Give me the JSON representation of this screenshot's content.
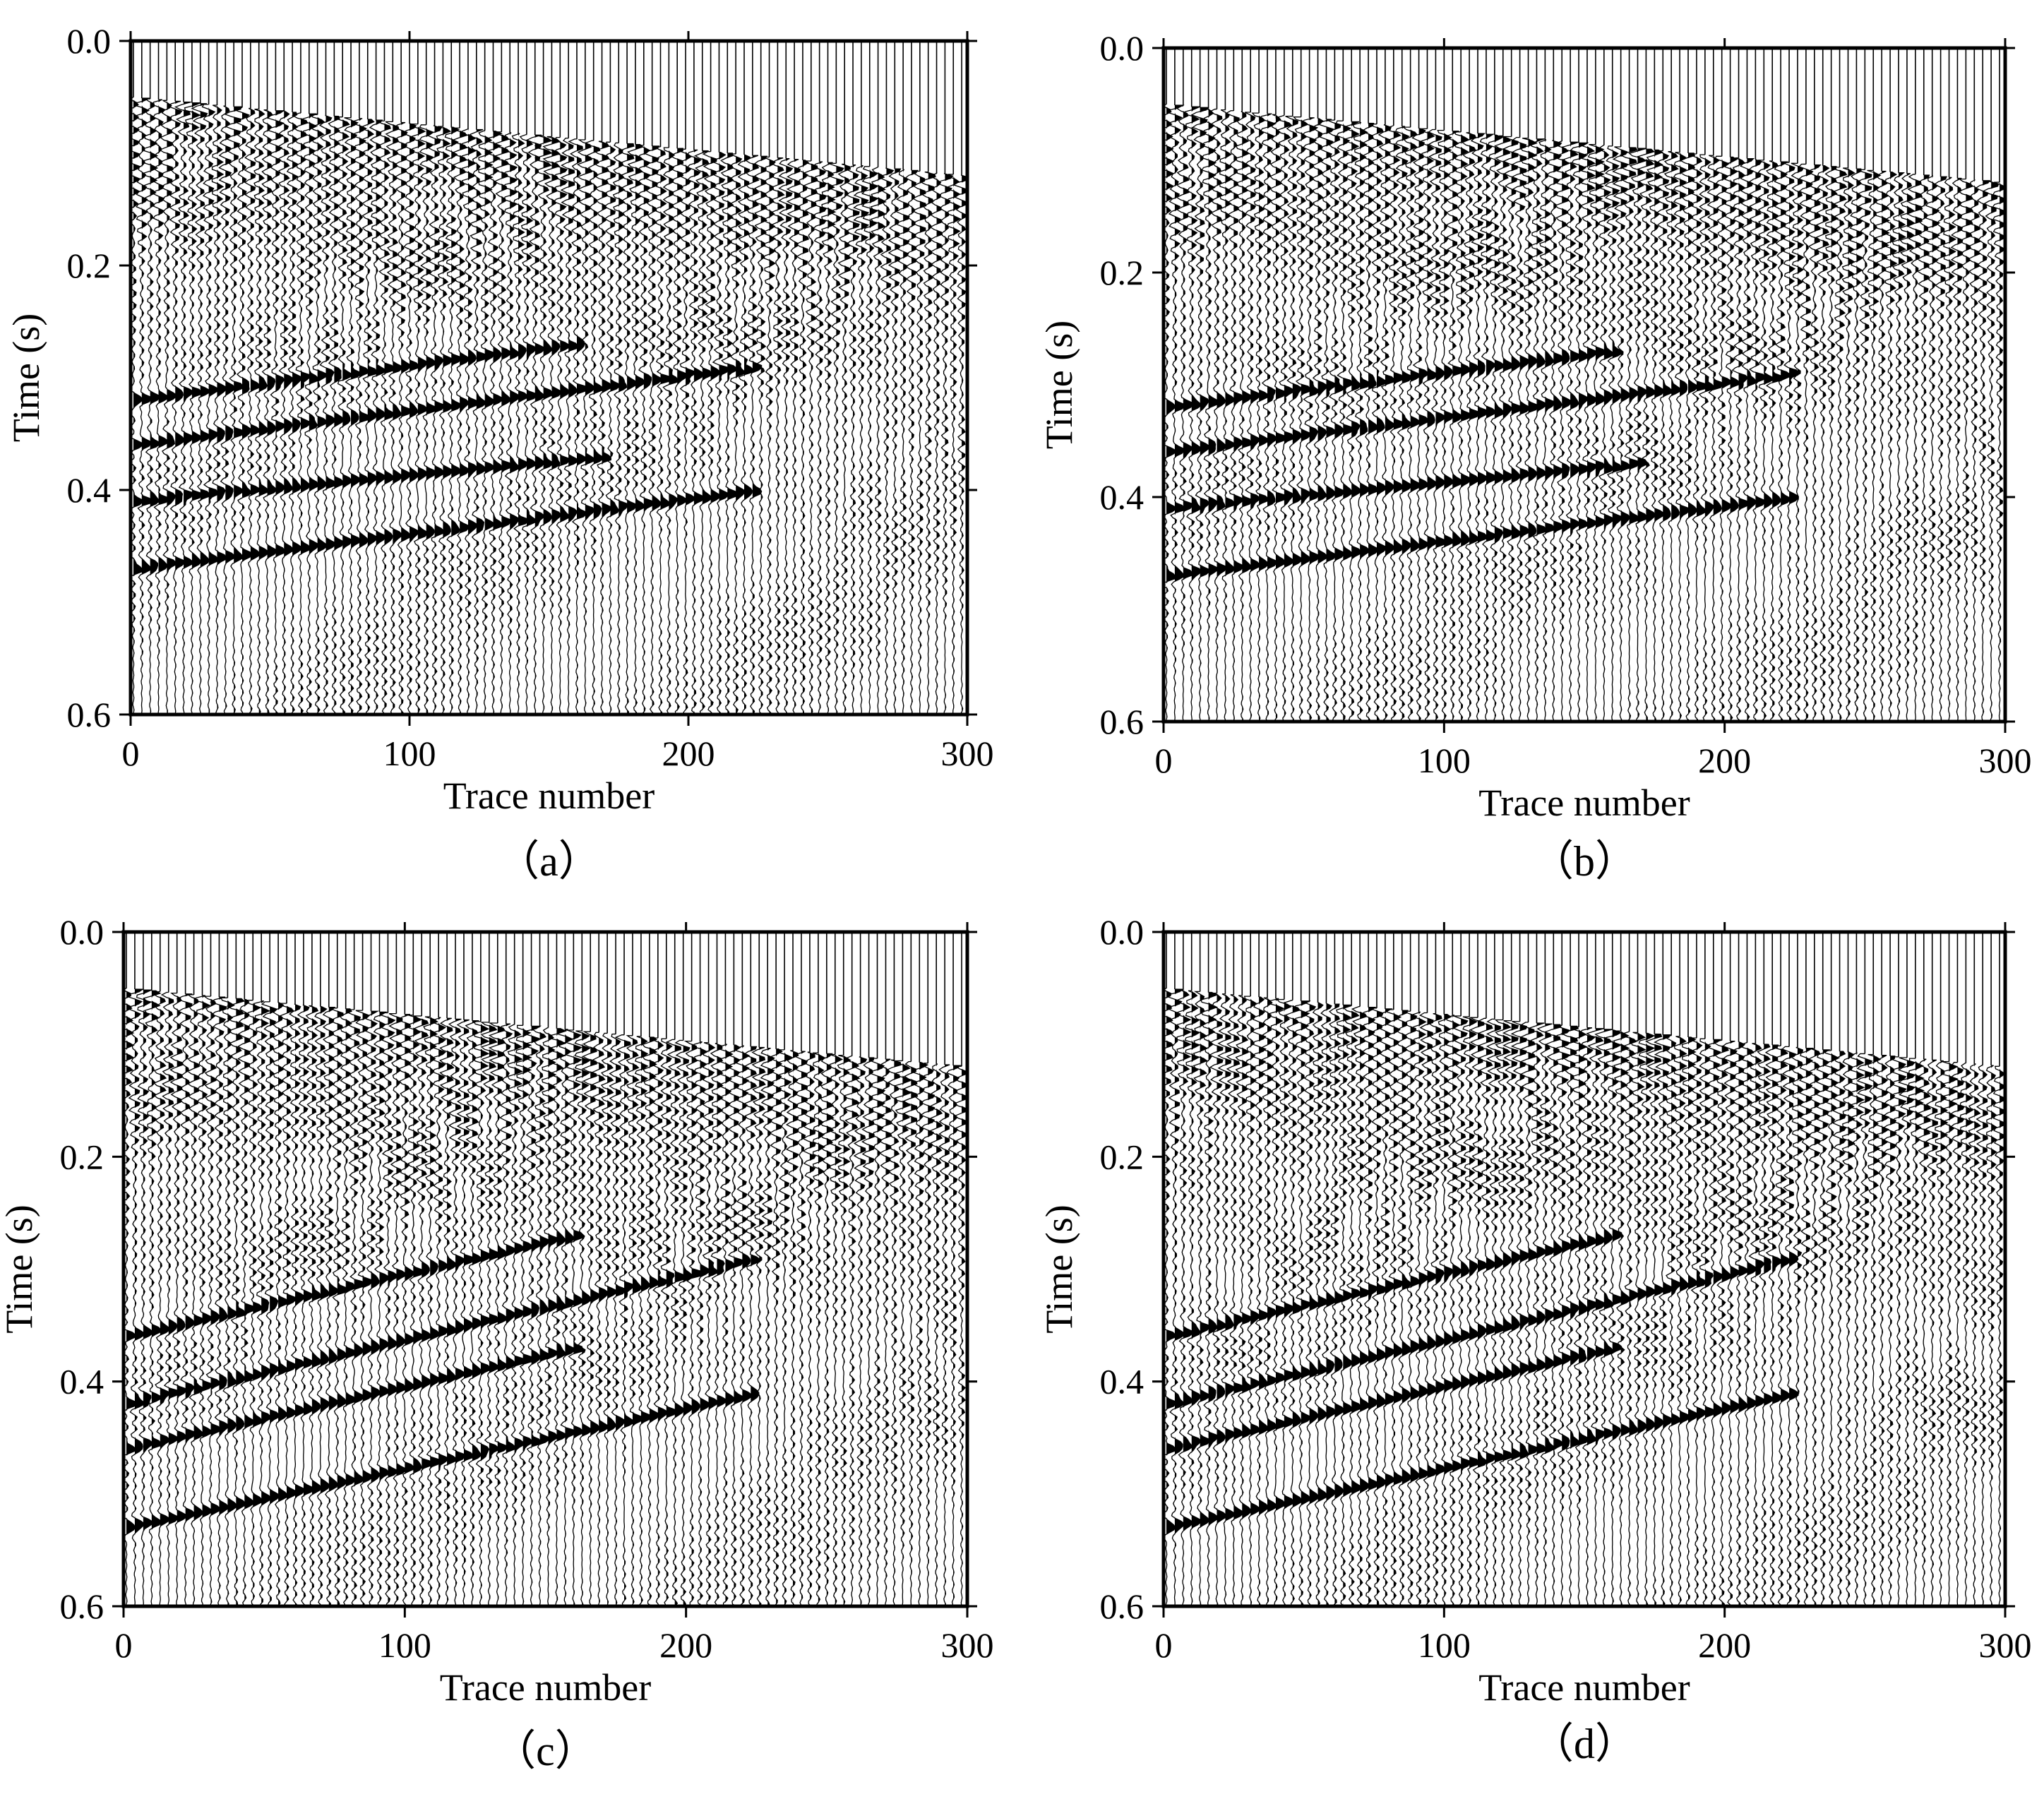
{
  "figure": {
    "description_free": true
  },
  "chart_data": [
    {
      "type": "seismic-wiggle",
      "panel_label": "（a）",
      "xlabel": "Trace number",
      "ylabel": "Time (s)",
      "xlim": [
        0,
        300
      ],
      "ylim": [
        0.6,
        0.0
      ],
      "xticks": [
        0,
        100,
        200,
        300
      ],
      "xtick_labels": [
        "0",
        "100",
        "200",
        "300"
      ],
      "yticks": [
        0.0,
        0.2,
        0.4,
        0.6
      ],
      "ytick_labels": [
        "0.0",
        "0.2",
        "0.4",
        "0.6"
      ],
      "n_traces": 300,
      "first_arrival": {
        "start_trace": 0,
        "start_time": 0.05,
        "end_trace": 300,
        "end_time": 0.12
      },
      "events": [
        {
          "kind": "reflection",
          "from_trace": 0,
          "t0": 0.32,
          "to_trace": 160,
          "t1": 0.27
        },
        {
          "kind": "reflection",
          "from_trace": 0,
          "t0": 0.36,
          "to_trace": 225,
          "t1": 0.29
        },
        {
          "kind": "reflection",
          "from_trace": 0,
          "t0": 0.41,
          "to_trace": 170,
          "t1": 0.37
        },
        {
          "kind": "reflection",
          "from_trace": 0,
          "t0": 0.47,
          "to_trace": 225,
          "t1": 0.4
        }
      ]
    },
    {
      "type": "seismic-wiggle",
      "panel_label": "（b）",
      "xlabel": "Trace number",
      "ylabel": "Time (s)",
      "xlim": [
        0,
        300
      ],
      "ylim": [
        0.6,
        0.0
      ],
      "xticks": [
        0,
        100,
        200,
        300
      ],
      "xtick_labels": [
        "0",
        "100",
        "200",
        "300"
      ],
      "yticks": [
        0.0,
        0.2,
        0.4,
        0.6
      ],
      "ytick_labels": [
        "0.0",
        "0.2",
        "0.4",
        "0.6"
      ],
      "n_traces": 300,
      "first_arrival": {
        "start_trace": 0,
        "start_time": 0.05,
        "end_trace": 300,
        "end_time": 0.12
      },
      "events": [
        {
          "kind": "reflection",
          "from_trace": 0,
          "t0": 0.32,
          "to_trace": 160,
          "t1": 0.27
        },
        {
          "kind": "reflection",
          "from_trace": 0,
          "t0": 0.36,
          "to_trace": 225,
          "t1": 0.29
        },
        {
          "kind": "reflection",
          "from_trace": 0,
          "t0": 0.41,
          "to_trace": 170,
          "t1": 0.37
        },
        {
          "kind": "reflection",
          "from_trace": 0,
          "t0": 0.47,
          "to_trace": 225,
          "t1": 0.4
        }
      ]
    },
    {
      "type": "seismic-wiggle",
      "panel_label": "（c）",
      "xlabel": "Trace number",
      "ylabel": "Time (s)",
      "xlim": [
        0,
        300
      ],
      "ylim": [
        0.6,
        0.0
      ],
      "xticks": [
        0,
        100,
        200,
        300
      ],
      "xtick_labels": [
        "0",
        "100",
        "200",
        "300"
      ],
      "yticks": [
        0.0,
        0.2,
        0.4,
        0.6
      ],
      "ytick_labels": [
        "0.0",
        "0.2",
        "0.4",
        "0.6"
      ],
      "n_traces": 300,
      "first_arrival": {
        "start_trace": 0,
        "start_time": 0.05,
        "end_trace": 300,
        "end_time": 0.12
      },
      "events": [
        {
          "kind": "reflection",
          "from_trace": 0,
          "t0": 0.36,
          "to_trace": 160,
          "t1": 0.27
        },
        {
          "kind": "reflection",
          "from_trace": 0,
          "t0": 0.42,
          "to_trace": 225,
          "t1": 0.29
        },
        {
          "kind": "reflection",
          "from_trace": 0,
          "t0": 0.46,
          "to_trace": 160,
          "t1": 0.37
        },
        {
          "kind": "reflection",
          "from_trace": 0,
          "t0": 0.53,
          "to_trace": 225,
          "t1": 0.41
        }
      ]
    },
    {
      "type": "seismic-wiggle",
      "panel_label": "（d）",
      "xlabel": "Trace number",
      "ylabel": "Time (s)",
      "xlim": [
        0,
        300
      ],
      "ylim": [
        0.6,
        0.0
      ],
      "xticks": [
        0,
        100,
        200,
        300
      ],
      "xtick_labels": [
        "0",
        "100",
        "200",
        "300"
      ],
      "yticks": [
        0.0,
        0.2,
        0.4,
        0.6
      ],
      "ytick_labels": [
        "0.0",
        "0.2",
        "0.4",
        "0.6"
      ],
      "n_traces": 300,
      "first_arrival": {
        "start_trace": 0,
        "start_time": 0.05,
        "end_trace": 300,
        "end_time": 0.12
      },
      "events": [
        {
          "kind": "reflection",
          "from_trace": 0,
          "t0": 0.36,
          "to_trace": 160,
          "t1": 0.27
        },
        {
          "kind": "reflection",
          "from_trace": 0,
          "t0": 0.42,
          "to_trace": 225,
          "t1": 0.29
        },
        {
          "kind": "reflection",
          "from_trace": 0,
          "t0": 0.46,
          "to_trace": 160,
          "t1": 0.37
        },
        {
          "kind": "reflection",
          "from_trace": 0,
          "t0": 0.53,
          "to_trace": 225,
          "t1": 0.41
        }
      ]
    }
  ]
}
